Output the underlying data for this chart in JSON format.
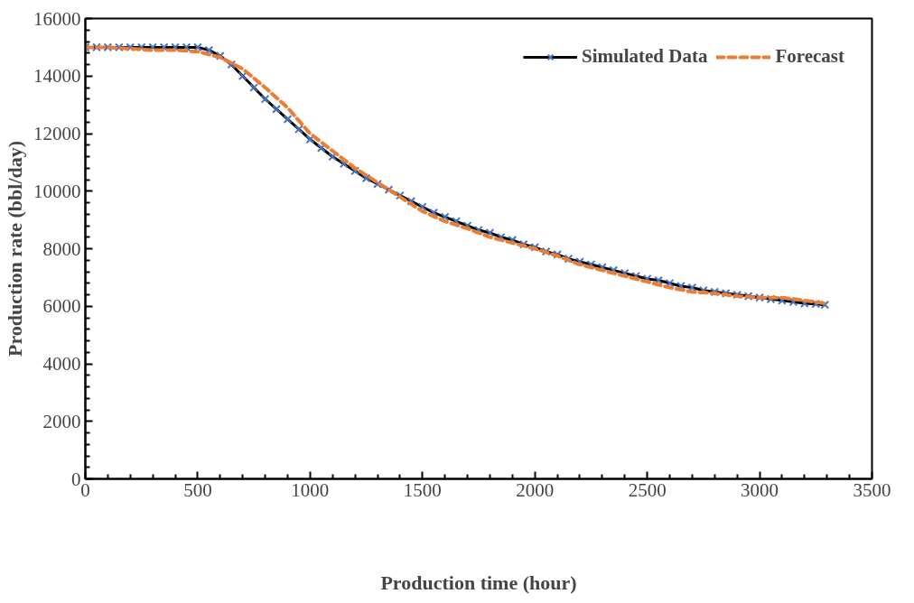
{
  "chart_data": {
    "type": "line",
    "xlabel": "Production time (hour)",
    "ylabel": "Production rate (bbl/day)",
    "xlim": [
      0,
      3500
    ],
    "xticks": [
      0,
      500,
      1000,
      1500,
      2000,
      2500,
      3000,
      3500
    ],
    "ylim": [
      0,
      16000
    ],
    "yticks": [
      0,
      2000,
      4000,
      6000,
      8000,
      10000,
      12000,
      14000,
      16000
    ],
    "grid": false,
    "legend": "top right",
    "series": [
      {
        "name": "Simulated Data",
        "color": "#000000",
        "marker": "cross",
        "line_style": "solid",
        "x": [
          0,
          50,
          100,
          150,
          200,
          250,
          300,
          350,
          400,
          450,
          500,
          550,
          600,
          650,
          700,
          750,
          800,
          850,
          900,
          950,
          1000,
          1050,
          1100,
          1150,
          1200,
          1250,
          1300,
          1350,
          1400,
          1450,
          1500,
          1550,
          1600,
          1650,
          1700,
          1750,
          1800,
          1850,
          1900,
          1950,
          2000,
          2050,
          2100,
          2150,
          2200,
          2250,
          2300,
          2350,
          2400,
          2450,
          2500,
          2550,
          2600,
          2650,
          2700,
          2750,
          2800,
          2850,
          2900,
          2950,
          3000,
          3050,
          3100,
          3150,
          3200,
          3250,
          3290
        ],
        "values": [
          15000,
          15000,
          15000,
          15000,
          15000,
          15000,
          15000,
          15000,
          15000,
          15000,
          15000,
          14900,
          14700,
          14400,
          14000,
          13600,
          13200,
          12850,
          12500,
          12150,
          11800,
          11500,
          11200,
          10950,
          10700,
          10450,
          10250,
          10050,
          9850,
          9650,
          9450,
          9250,
          9100,
          8950,
          8800,
          8650,
          8550,
          8400,
          8300,
          8150,
          8050,
          7900,
          7800,
          7650,
          7550,
          7450,
          7350,
          7250,
          7150,
          7050,
          6950,
          6900,
          6800,
          6700,
          6650,
          6550,
          6500,
          6450,
          6400,
          6350,
          6300,
          6250,
          6200,
          6150,
          6100,
          6080,
          6050
        ]
      },
      {
        "name": "Forecast",
        "color": "#ed7d31",
        "marker": "none",
        "line_style": "dashed",
        "x": [
          0,
          100,
          200,
          300,
          400,
          500,
          600,
          700,
          800,
          900,
          1000,
          1100,
          1200,
          1300,
          1400,
          1500,
          1600,
          1700,
          1800,
          1900,
          2000,
          2100,
          2200,
          2300,
          2400,
          2500,
          2600,
          2700,
          2800,
          2900,
          3000,
          3100,
          3200,
          3290
        ],
        "values": [
          15000,
          15000,
          14950,
          14900,
          14900,
          14850,
          14650,
          14250,
          13600,
          12900,
          12000,
          11400,
          10800,
          10300,
          9800,
          9300,
          8950,
          8700,
          8400,
          8200,
          8000,
          7750,
          7450,
          7250,
          7050,
          6850,
          6650,
          6500,
          6450,
          6350,
          6300,
          6300,
          6200,
          6100
        ]
      }
    ]
  }
}
